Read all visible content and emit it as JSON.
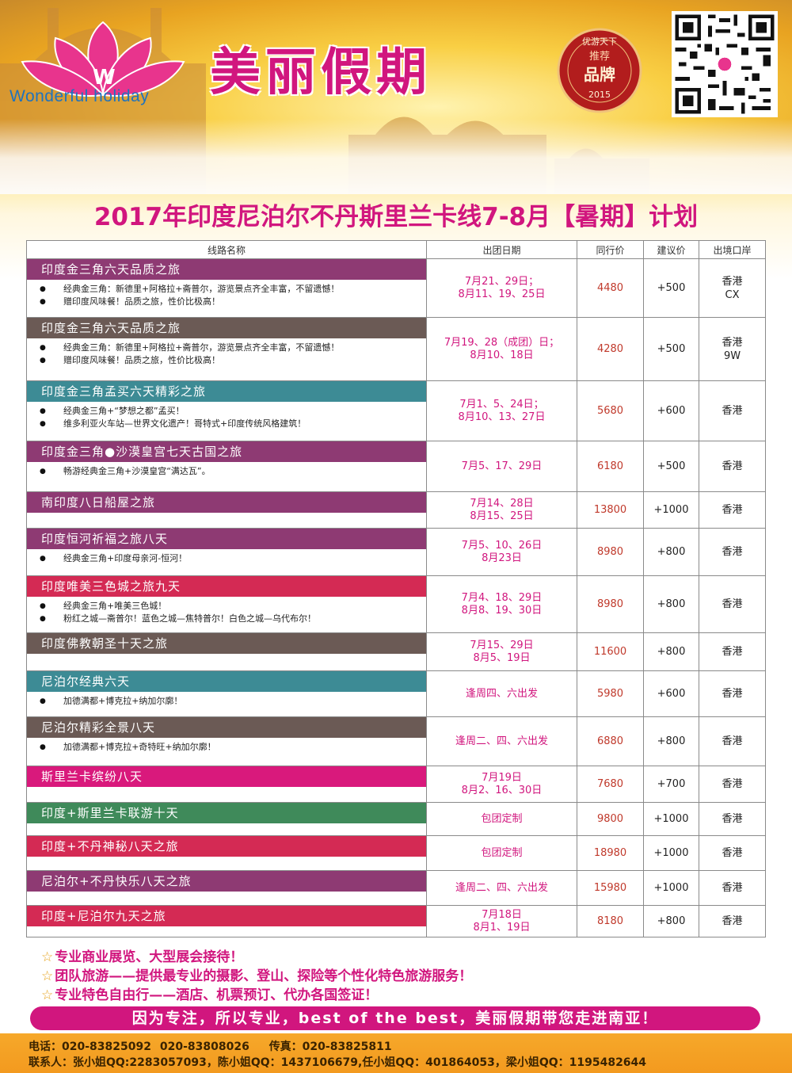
{
  "brand": {
    "name_en": "Wonderful holiday",
    "name_cn": "美丽假期",
    "seal_top": "优游天下",
    "seal_mid": "推荐",
    "seal_main": "品牌",
    "seal_year": "2015"
  },
  "title": "2017年印度尼泊尔不丹斯里兰卡线7-8月【暑期】计划",
  "table": {
    "headers": [
      "线路名称",
      "出团日期",
      "同行价",
      "建议价",
      "出境口岸"
    ],
    "rows": [
      {
        "name": "印度金三角六天品质之旅",
        "color": "#8e3a73",
        "bullets": [
          "经典金三角：新德里+阿格拉+斋普尔，游览景点齐全丰富，不留遗憾！",
          "赠印度风味餐！品质之旅，性价比极高！"
        ],
        "dates": "7月21、29日；\n8月11、19、25日",
        "price": "4480",
        "suggest": "+500",
        "port": "香港\nCX"
      },
      {
        "name": "印度金三角六天品质之旅",
        "color": "#6b5a55",
        "bullets": [
          "经典金三角：新德里+阿格拉+斋普尔，游览景点齐全丰富，不留遗憾！",
          "赠印度风味餐！品质之旅，性价比极高！"
        ],
        "dates": "7月19、28（成团）日；\n8月10、18日",
        "price": "4280",
        "suggest": "+500",
        "port": "香港\n9W"
      },
      {
        "name": "印度金三角孟买六天精彩之旅",
        "color": "#3d8b95",
        "bullets": [
          "经典金三角+“梦想之都”孟买！",
          "维多利亚火车站—世界文化遗产！哥特式+印度传统风格建筑！"
        ],
        "dates": "7月1、5、24日；\n8月10、13、27日",
        "price": "5680",
        "suggest": "+600",
        "port": "香港"
      },
      {
        "name": "印度金三角●沙漠皇宫七天古国之旅",
        "color": "#8e3a73",
        "bullets": [
          "畅游经典金三角+沙漠皇宫“满达瓦”。"
        ],
        "dates": "7月5、17、29日",
        "price": "6180",
        "suggest": "+500",
        "port": "香港"
      },
      {
        "name": "南印度八日船屋之旅",
        "color": "#8e3a73",
        "bullets": [],
        "dates": "7月14、28日\n8月15、25日",
        "price": "13800",
        "suggest": "+1000",
        "port": "香港"
      },
      {
        "name": "印度恒河祈福之旅八天",
        "color": "#8e3a73",
        "bullets": [
          "经典金三角+印度母亲河-恒河！"
        ],
        "dates": "7月5、10、26日\n8月23日",
        "price": "8980",
        "suggest": "+800",
        "port": "香港"
      },
      {
        "name": "印度唯美三色城之旅九天",
        "color": "#d42a54",
        "bullets": [
          "经典金三角+唯美三色城！",
          "粉红之城—斋普尔！蓝色之城—焦特普尔！白色之城—乌代布尔！"
        ],
        "dates": "7月4、18、29日\n8月8、19、30日",
        "price": "8980",
        "suggest": "+800",
        "port": "香港"
      },
      {
        "name": "印度佛教朝圣十天之旅",
        "color": "#6b5a55",
        "bullets": [],
        "dates": "7月15、29日\n8月5、19日",
        "price": "11600",
        "suggest": "+800",
        "port": "香港"
      },
      {
        "name": "尼泊尔经典六天",
        "color": "#3d8b95",
        "bullets": [
          "加德满都+博克拉+纳加尔廓！"
        ],
        "dates": "逢周四、六出发",
        "price": "5980",
        "suggest": "+600",
        "port": "香港"
      },
      {
        "name": "尼泊尔精彩全景八天",
        "color": "#6b5a55",
        "bullets": [
          "加德满都+博克拉+奇特旺+纳加尔廓！"
        ],
        "dates": "逢周二、四、六出发",
        "price": "6880",
        "suggest": "+800",
        "port": "香港"
      },
      {
        "name": "斯里兰卡缤纷八天",
        "color": "#d9197c",
        "bullets": [],
        "dates": "7月19日\n8月2、16、30日",
        "price": "7680",
        "suggest": "+700",
        "port": "香港"
      },
      {
        "name": "印度+斯里兰卡联游十天",
        "color": "#3f8a5a",
        "bullets": [],
        "dates": "包团定制",
        "price": "9800",
        "suggest": "+1000",
        "port": "香港"
      },
      {
        "name": "印度+不丹神秘八天之旅",
        "color": "#d42a54",
        "bullets": [],
        "dates": "包团定制",
        "price": "18980",
        "suggest": "+1000",
        "port": "香港"
      },
      {
        "name": "尼泊尔+不丹快乐八天之旅",
        "color": "#8e3a73",
        "bullets": [],
        "dates": "逢周二、四、六出发",
        "price": "15980",
        "suggest": "+1000",
        "port": "香港"
      },
      {
        "name": "印度+尼泊尔九天之旅",
        "color": "#d42a54",
        "bullets": [],
        "dates": "7月18日\n8月1、19日",
        "price": "8180",
        "suggest": "+800",
        "port": "香港"
      }
    ]
  },
  "notes": [
    "专业商业展览、大型展会接待！",
    "团队旅游——提供最专业的摄影、登山、探险等个性化特色旅游服务！",
    "专业特色自由行——酒店、机票预订、代办各国签证！"
  ],
  "slogan": "因为专注，所以专业，best of the best，美丽假期带您走进南亚！",
  "footer": {
    "line1": [
      "电话：020-83825092",
      "020-83808026",
      "传真：020-83825811"
    ],
    "line2": "联系人：张小姐QQ:2283057093，陈小姐QQ：1437106679,任小姐QQ：401864053，梁小姐QQ：1195482644"
  },
  "colors": {
    "brand": "#d1167e",
    "footer": "#f39a1f",
    "price": "#c0392b"
  }
}
